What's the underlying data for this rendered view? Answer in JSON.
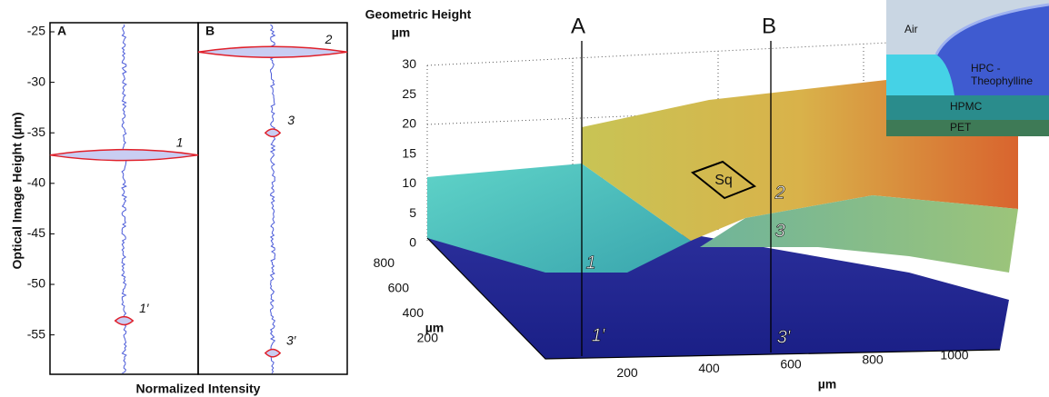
{
  "left_plot": {
    "y_axis_label": "Optical Image Height (µm)",
    "x_axis_label": "Normalized Intensity",
    "ylim": [
      -58.9,
      -24.1
    ],
    "yticks": [
      -25,
      -30,
      -35,
      -40,
      -45,
      -50,
      -55
    ],
    "panels": [
      {
        "label": "A",
        "peaks": [
          {
            "label": "1",
            "height": -37.2,
            "intensity": 1
          },
          {
            "label": "1′",
            "height": -53.6,
            "intensity": 0.12
          }
        ]
      },
      {
        "label": "B",
        "peaks": [
          {
            "label": "2",
            "height": -27.0,
            "intensity": 1
          },
          {
            "label": "3",
            "height": -35.0,
            "intensity": 0.1
          },
          {
            "label": "3′",
            "height": -56.8,
            "intensity": 0.1
          }
        ]
      }
    ]
  },
  "surface_plot": {
    "z_axis_title": "Geometric Height",
    "z_axis_unit": "µm",
    "z_ticks": [
      0,
      5,
      10,
      15,
      20,
      25,
      30
    ],
    "y_ticks": [
      200,
      400,
      600,
      800
    ],
    "y_axis_unit": "µm",
    "x_ticks": [
      200,
      400,
      600,
      800,
      1000
    ],
    "x_axis_unit": "µm",
    "profile_labels": [
      "A",
      "B"
    ],
    "point_labels": [
      "1",
      "2",
      "3",
      "1′",
      "3′"
    ],
    "roughness_label": "Sq"
  },
  "inset": {
    "layers": [
      {
        "lines": [
          "Air"
        ]
      },
      {
        "lines": [
          "HPC -",
          "Theophylline"
        ]
      },
      {
        "lines": [
          "HPMC"
        ]
      },
      {
        "lines": [
          "PET"
        ]
      }
    ]
  }
}
